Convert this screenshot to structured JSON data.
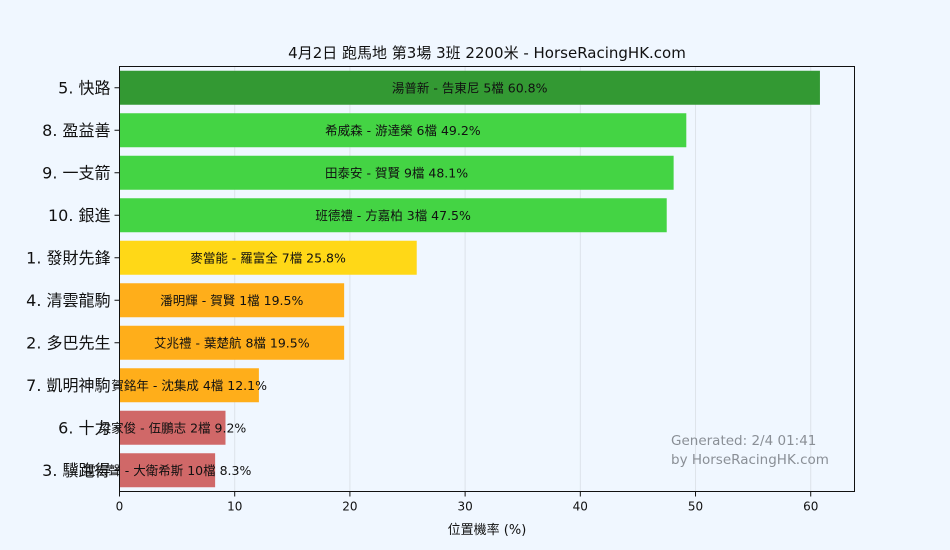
{
  "chart_data": {
    "type": "bar",
    "orientation": "horizontal",
    "title": "4月2日  跑馬地  第3場  3班  2200米 - HorseRacingHK.com",
    "xlabel": "位置機率 (%)",
    "ylabel": "",
    "xlim": [
      0,
      63.8
    ],
    "xticks": [
      0,
      10,
      20,
      30,
      40,
      50,
      60
    ],
    "grid": "vertical",
    "categories": [
      "5. 快路",
      "8. 盈益善",
      "9. 一支箭",
      "10. 銀進",
      "1. 發財先鋒",
      "4. 清雲龍駒",
      "2. 多巴先生",
      "7. 凱明神駒",
      "6. 十力",
      "3. 驥跑得"
    ],
    "values": [
      60.8,
      49.2,
      48.1,
      47.5,
      25.8,
      19.5,
      19.5,
      12.1,
      9.2,
      8.3
    ],
    "bar_labels": [
      "湯普新 - 告東尼 5檔  60.8%",
      "希威森 - 游達榮 6檔  49.2%",
      "田泰安 - 賀賢 9檔  48.1%",
      "班德禮 - 方嘉柏 3檔  47.5%",
      "麥當能 - 羅富全 7檔  25.8%",
      "潘明輝 - 賀賢 1檔  19.5%",
      "艾兆禮 - 葉楚航 8檔  19.5%",
      "賀銘年 - 沈集成 4檔  12.1%",
      "梁家俊 - 伍鵬志 2檔  9.2%",
      "霍宏聲 - 大衛希斯 10檔  8.3%"
    ],
    "colors": [
      "#339933",
      "#44d444",
      "#44d444",
      "#44d444",
      "#ffd817",
      "#ffae1a",
      "#ffae1a",
      "#ffae1a",
      "#d06868",
      "#d06868"
    ],
    "watermark": [
      "Generated: 2/4 01:41",
      "by HorseRacingHK.com"
    ]
  }
}
